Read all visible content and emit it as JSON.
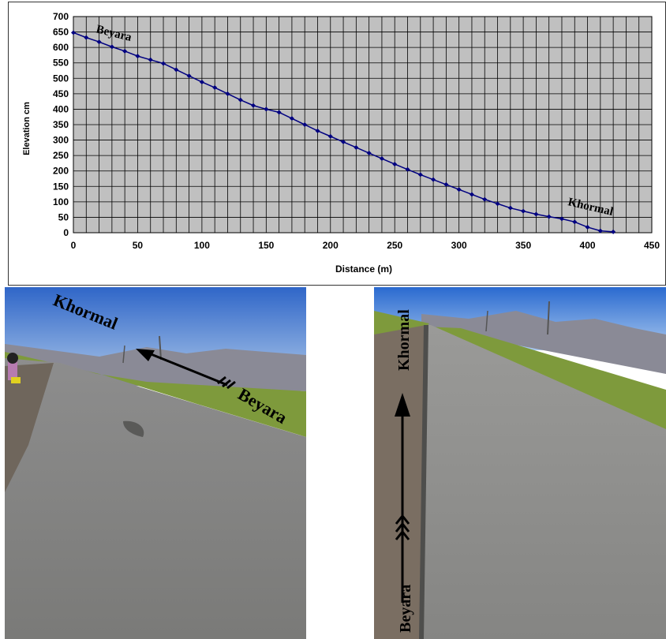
{
  "chart_data": {
    "type": "line",
    "title": "",
    "xlabel": "Distance (m)",
    "ylabel": "Elevation cm",
    "xlim": [
      0,
      450
    ],
    "ylim": [
      0,
      700
    ],
    "x_ticks": [
      "0",
      "50",
      "100",
      "150",
      "200",
      "250",
      "300",
      "350",
      "400",
      "450"
    ],
    "y_ticks": [
      "0",
      "50",
      "100",
      "150",
      "200",
      "250",
      "300",
      "350",
      "400",
      "450",
      "500",
      "550",
      "600",
      "650",
      "700"
    ],
    "grid": true,
    "plot_background": "#c0c0c0",
    "series": [
      {
        "color": "#000080",
        "x": [
          0,
          10,
          20,
          30,
          40,
          50,
          60,
          70,
          80,
          90,
          100,
          110,
          120,
          130,
          140,
          150,
          160,
          170,
          180,
          190,
          200,
          210,
          220,
          230,
          240,
          250,
          260,
          270,
          280,
          290,
          300,
          310,
          320,
          330,
          340,
          350,
          360,
          370,
          380,
          390,
          400,
          410,
          420
        ],
        "y": [
          648,
          632,
          618,
          602,
          588,
          572,
          560,
          548,
          528,
          508,
          488,
          470,
          450,
          430,
          412,
          400,
          390,
          370,
          350,
          330,
          312,
          294,
          276,
          258,
          240,
          222,
          205,
          188,
          172,
          156,
          140,
          124,
          108,
          94,
          80,
          70,
          60,
          52,
          45,
          35,
          18,
          6,
          3
        ]
      }
    ],
    "annotations": [
      "Beyara",
      "Khormal"
    ]
  },
  "photos": {
    "left": {
      "label_top": "Khormal",
      "label_bottom": "Beyara"
    },
    "right": {
      "label_top": "Khormal",
      "label_bottom": "Beyara"
    }
  },
  "colors": {
    "sky": "#5b8fd8",
    "mountains": "#8a8a96",
    "grass": "#7e9a3c",
    "asphalt": "#8c8c88",
    "gravel": "#7a6e62"
  }
}
